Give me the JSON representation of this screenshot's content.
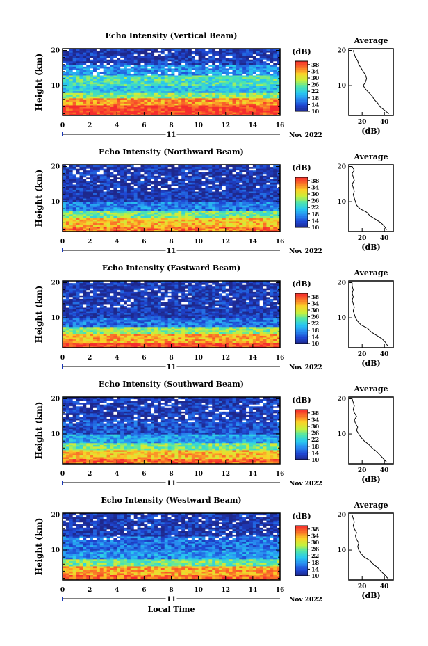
{
  "figure": {
    "xaxis_label": "Local Time",
    "date_day": "11",
    "date_month_year": "Nov 2022"
  },
  "chart_data": [
    {
      "type": "heatmap",
      "title": "Echo Intensity (Vertical Beam)",
      "ylabel": "Height (km)",
      "x_ticks": [
        0,
        2,
        4,
        6,
        8,
        10,
        12,
        14,
        16
      ],
      "xlim": [
        0,
        16
      ],
      "y_ticks": [
        10,
        20
      ],
      "ylim": [
        1.5,
        20.5
      ],
      "colorbar": {
        "label": "(dB)",
        "ticks": [
          10,
          14,
          18,
          22,
          26,
          30,
          34,
          38
        ],
        "range": [
          10,
          40
        ]
      },
      "layers": [
        {
          "height_range_km": [
            1.5,
            4.5
          ],
          "level_db": 39
        },
        {
          "height_range_km": [
            4.5,
            6.5
          ],
          "level_db": 35
        },
        {
          "height_range_km": [
            6.5,
            8.0
          ],
          "level_db": 27
        },
        {
          "height_range_km": [
            8.0,
            10.0
          ],
          "level_db": 21
        },
        {
          "height_range_km": [
            10.0,
            13.0
          ],
          "level_db": 24
        },
        {
          "height_range_km": [
            13.0,
            16.0
          ],
          "level_db": 18
        },
        {
          "height_range_km": [
            16.0,
            20.5
          ],
          "level_db": 12
        }
      ],
      "profile": {
        "title": "Average",
        "xlabel": "(dB)",
        "x_ticks": [
          20,
          40
        ],
        "xlim": [
          8,
          48
        ],
        "height_km": [
          2,
          3,
          4,
          5,
          6,
          7,
          8,
          9,
          10,
          11,
          12,
          13,
          14,
          15,
          16,
          17,
          18,
          19,
          20
        ],
        "value_db": [
          44,
          40,
          36,
          34,
          31,
          29,
          26,
          23,
          21,
          23,
          24,
          23,
          21,
          19,
          17,
          16,
          14,
          13,
          12
        ]
      }
    },
    {
      "type": "heatmap",
      "title": "Echo Intensity (Northward Beam)",
      "ylabel": "Height (km)",
      "x_ticks": [
        0,
        2,
        4,
        6,
        8,
        10,
        12,
        14,
        16
      ],
      "xlim": [
        0,
        16
      ],
      "y_ticks": [
        10,
        20
      ],
      "ylim": [
        1.5,
        20.5
      ],
      "colorbar": {
        "label": "(dB)",
        "ticks": [
          10,
          14,
          18,
          22,
          26,
          30,
          34,
          38
        ],
        "range": [
          10,
          40
        ]
      },
      "layers": [
        {
          "height_range_km": [
            1.5,
            3.0
          ],
          "level_db": 36
        },
        {
          "height_range_km": [
            3.0,
            5.5
          ],
          "level_db": 33
        },
        {
          "height_range_km": [
            5.5,
            7.5
          ],
          "level_db": 26
        },
        {
          "height_range_km": [
            7.5,
            10.0
          ],
          "level_db": 17
        },
        {
          "height_range_km": [
            10.0,
            20.5
          ],
          "level_db": 12
        }
      ],
      "profile": {
        "title": "Average",
        "xlabel": "(dB)",
        "x_ticks": [
          20,
          40
        ],
        "xlim": [
          8,
          48
        ],
        "height_km": [
          2,
          3,
          4,
          5,
          6,
          7,
          8,
          9,
          10,
          11,
          12,
          13,
          14,
          15,
          16,
          17,
          18,
          19,
          20
        ],
        "value_db": [
          42,
          40,
          37,
          32,
          27,
          24,
          18,
          15,
          14,
          13,
          12,
          13,
          12,
          11,
          13,
          12,
          11,
          13,
          11
        ]
      }
    },
    {
      "type": "heatmap",
      "title": "Echo Intensity (Eastward Beam)",
      "ylabel": "Height (km)",
      "x_ticks": [
        0,
        2,
        4,
        6,
        8,
        10,
        12,
        14,
        16
      ],
      "xlim": [
        0,
        16
      ],
      "y_ticks": [
        10,
        20
      ],
      "ylim": [
        1.5,
        20.5
      ],
      "colorbar": {
        "label": "(dB)",
        "ticks": [
          10,
          14,
          18,
          22,
          26,
          30,
          34,
          38
        ],
        "range": [
          10,
          40
        ]
      },
      "layers": [
        {
          "height_range_km": [
            1.5,
            3.0
          ],
          "level_db": 39
        },
        {
          "height_range_km": [
            3.0,
            5.5
          ],
          "level_db": 34
        },
        {
          "height_range_km": [
            5.5,
            7.5
          ],
          "level_db": 27
        },
        {
          "height_range_km": [
            7.5,
            10.0
          ],
          "level_db": 16
        },
        {
          "height_range_km": [
            10.0,
            20.5
          ],
          "level_db": 12
        }
      ],
      "profile": {
        "title": "Average",
        "xlabel": "(dB)",
        "x_ticks": [
          20,
          40
        ],
        "xlim": [
          8,
          48
        ],
        "height_km": [
          2,
          3,
          4,
          5,
          6,
          7,
          8,
          9,
          10,
          11,
          12,
          13,
          14,
          15,
          16,
          17,
          18,
          19,
          20
        ],
        "value_db": [
          43,
          41,
          38,
          33,
          28,
          25,
          19,
          16,
          14,
          13,
          12,
          13,
          12,
          11,
          12,
          11,
          12,
          11,
          11
        ]
      }
    },
    {
      "type": "heatmap",
      "title": "Echo Intensity (Southward Beam)",
      "ylabel": "Height (km)",
      "x_ticks": [
        0,
        2,
        4,
        6,
        8,
        10,
        12,
        14,
        16
      ],
      "xlim": [
        0,
        16
      ],
      "y_ticks": [
        10,
        20
      ],
      "ylim": [
        1.5,
        20.5
      ],
      "colorbar": {
        "label": "(dB)",
        "ticks": [
          10,
          14,
          18,
          22,
          26,
          30,
          34,
          38
        ],
        "range": [
          10,
          40
        ]
      },
      "layers": [
        {
          "height_range_km": [
            1.5,
            3.0
          ],
          "level_db": 37
        },
        {
          "height_range_km": [
            3.0,
            5.5
          ],
          "level_db": 33
        },
        {
          "height_range_km": [
            5.5,
            7.5
          ],
          "level_db": 26
        },
        {
          "height_range_km": [
            7.5,
            10.0
          ],
          "level_db": 19
        },
        {
          "height_range_km": [
            10.0,
            14.0
          ],
          "level_db": 14
        },
        {
          "height_range_km": [
            14.0,
            20.5
          ],
          "level_db": 12
        }
      ],
      "profile": {
        "title": "Average",
        "xlabel": "(dB)",
        "x_ticks": [
          20,
          40
        ],
        "xlim": [
          8,
          48
        ],
        "height_km": [
          2,
          3,
          4,
          5,
          6,
          7,
          8,
          9,
          10,
          11,
          12,
          13,
          14,
          15,
          16,
          17,
          18,
          19,
          20
        ],
        "value_db": [
          42,
          39,
          36,
          33,
          29,
          26,
          22,
          19,
          17,
          15,
          16,
          14,
          13,
          15,
          13,
          12,
          13,
          12,
          11
        ]
      }
    },
    {
      "type": "heatmap",
      "title": "Echo Intensity (Westward Beam)",
      "ylabel": "Height (km)",
      "x_ticks": [
        0,
        2,
        4,
        6,
        8,
        10,
        12,
        14,
        16
      ],
      "xlim": [
        0,
        16
      ],
      "y_ticks": [
        10,
        20
      ],
      "ylim": [
        1.5,
        20.5
      ],
      "colorbar": {
        "label": "(dB)",
        "ticks": [
          10,
          14,
          18,
          22,
          26,
          30,
          34,
          38
        ],
        "range": [
          10,
          40
        ]
      },
      "layers": [
        {
          "height_range_km": [
            1.5,
            3.0
          ],
          "level_db": 37
        },
        {
          "height_range_km": [
            3.0,
            5.5
          ],
          "level_db": 34
        },
        {
          "height_range_km": [
            5.5,
            7.5
          ],
          "level_db": 26
        },
        {
          "height_range_km": [
            7.5,
            10.0
          ],
          "level_db": 18
        },
        {
          "height_range_km": [
            10.0,
            14.0
          ],
          "level_db": 16
        },
        {
          "height_range_km": [
            14.0,
            20.5
          ],
          "level_db": 12
        }
      ],
      "profile": {
        "title": "Average",
        "xlabel": "(dB)",
        "x_ticks": [
          20,
          40
        ],
        "xlim": [
          8,
          48
        ],
        "height_km": [
          2,
          3,
          4,
          5,
          6,
          7,
          8,
          9,
          10,
          11,
          12,
          13,
          14,
          15,
          16,
          17,
          18,
          19,
          20
        ],
        "value_db": [
          43,
          40,
          37,
          34,
          30,
          27,
          22,
          19,
          17,
          16,
          17,
          15,
          14,
          15,
          13,
          12,
          13,
          12,
          11
        ]
      }
    }
  ]
}
